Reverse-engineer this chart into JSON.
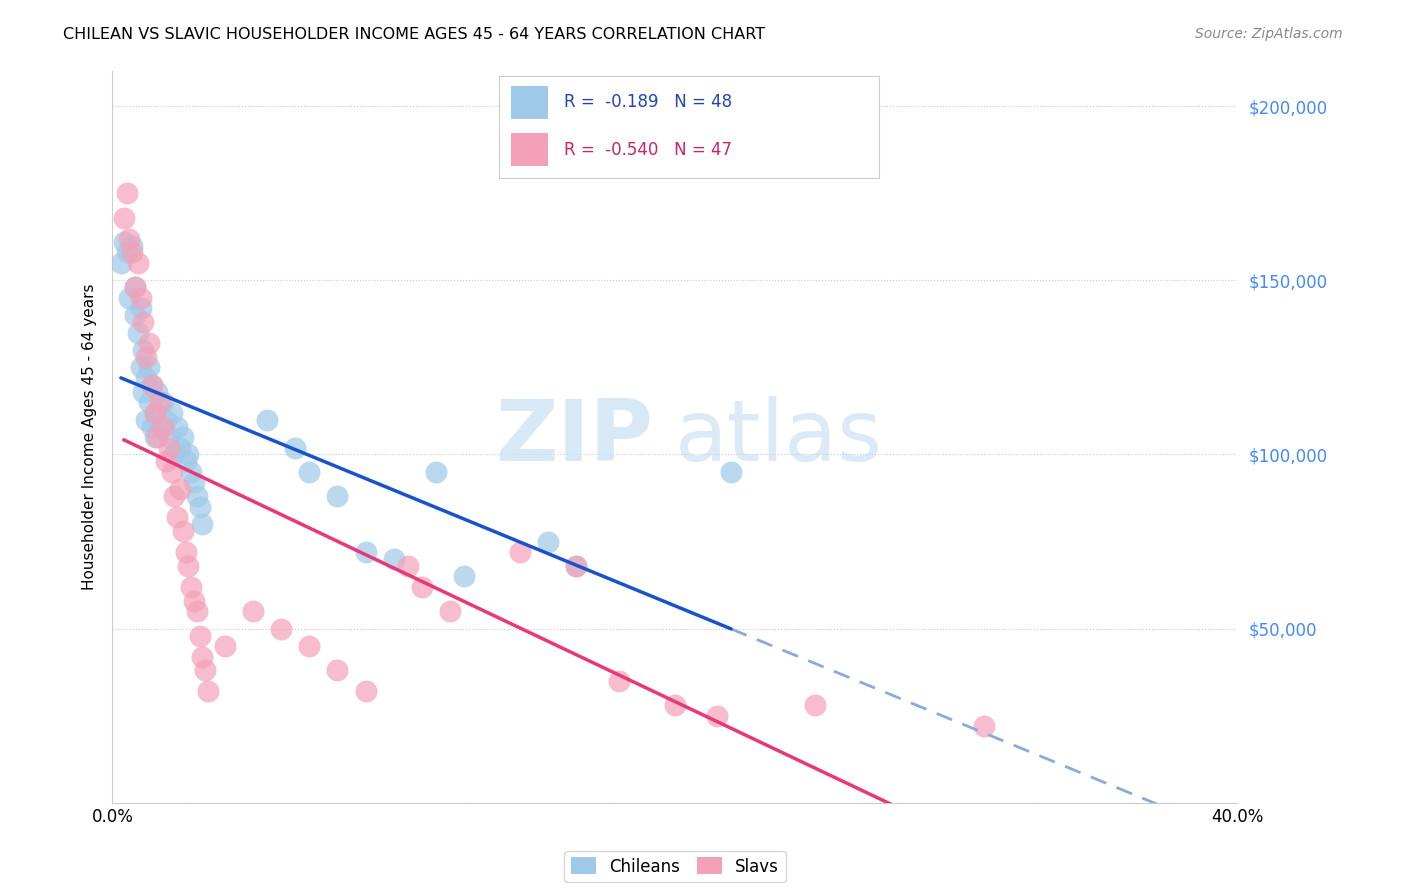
{
  "title": "CHILEAN VS SLAVIC HOUSEHOLDER INCOME AGES 45 - 64 YEARS CORRELATION CHART",
  "source": "Source: ZipAtlas.com",
  "ylabel": "Householder Income Ages 45 - 64 years",
  "xlim": [
    0,
    0.4
  ],
  "ylim": [
    0,
    210000
  ],
  "yticks": [
    0,
    50000,
    100000,
    150000,
    200000
  ],
  "ytick_labels_right": [
    "",
    "$50,000",
    "$100,000",
    "$150,000",
    "$200,000"
  ],
  "xticks": [
    0.0,
    0.1,
    0.2,
    0.3,
    0.4
  ],
  "xtick_labels": [
    "0.0%",
    "",
    "",
    "",
    "40.0%"
  ],
  "color_chilean": "#9EC9E8",
  "color_slav": "#F4A0B8",
  "color_line_chilean": "#1A52CC",
  "color_line_slav": "#E83878",
  "color_line_dashed": "#88AADD",
  "watermark_zip": "ZIP",
  "watermark_atlas": "atlas",
  "legend_r1_text": "R =  -0.189   N = 48",
  "legend_r2_text": "R =  -0.540   N = 47",
  "chilean_x": [
    0.003,
    0.004,
    0.005,
    0.006,
    0.007,
    0.008,
    0.008,
    0.009,
    0.01,
    0.01,
    0.011,
    0.011,
    0.012,
    0.012,
    0.013,
    0.013,
    0.014,
    0.014,
    0.015,
    0.015,
    0.016,
    0.017,
    0.018,
    0.019,
    0.02,
    0.021,
    0.022,
    0.023,
    0.024,
    0.025,
    0.026,
    0.027,
    0.028,
    0.029,
    0.03,
    0.031,
    0.032,
    0.055,
    0.065,
    0.07,
    0.08,
    0.09,
    0.1,
    0.115,
    0.125,
    0.155,
    0.165,
    0.22
  ],
  "chilean_y": [
    155000,
    161000,
    158000,
    145000,
    160000,
    140000,
    148000,
    135000,
    142000,
    125000,
    130000,
    118000,
    122000,
    110000,
    125000,
    115000,
    108000,
    120000,
    112000,
    105000,
    118000,
    108000,
    115000,
    110000,
    105000,
    112000,
    100000,
    108000,
    102000,
    105000,
    98000,
    100000,
    95000,
    92000,
    88000,
    85000,
    80000,
    110000,
    102000,
    95000,
    88000,
    72000,
    70000,
    95000,
    65000,
    75000,
    68000,
    95000
  ],
  "slav_x": [
    0.004,
    0.005,
    0.006,
    0.007,
    0.008,
    0.009,
    0.01,
    0.011,
    0.012,
    0.013,
    0.014,
    0.015,
    0.016,
    0.017,
    0.018,
    0.019,
    0.02,
    0.021,
    0.022,
    0.023,
    0.024,
    0.025,
    0.026,
    0.027,
    0.028,
    0.029,
    0.03,
    0.031,
    0.032,
    0.033,
    0.034,
    0.04,
    0.05,
    0.06,
    0.07,
    0.08,
    0.09,
    0.105,
    0.11,
    0.12,
    0.145,
    0.165,
    0.18,
    0.2,
    0.215,
    0.25,
    0.31
  ],
  "slav_y": [
    168000,
    175000,
    162000,
    158000,
    148000,
    155000,
    145000,
    138000,
    128000,
    132000,
    120000,
    112000,
    105000,
    115000,
    108000,
    98000,
    102000,
    95000,
    88000,
    82000,
    90000,
    78000,
    72000,
    68000,
    62000,
    58000,
    55000,
    48000,
    42000,
    38000,
    32000,
    45000,
    55000,
    50000,
    45000,
    38000,
    32000,
    68000,
    62000,
    55000,
    72000,
    68000,
    35000,
    28000,
    25000,
    28000,
    22000
  ],
  "chilean_line_x0": 0.003,
  "chilean_line_x1": 0.22,
  "slav_line_x0": 0.004,
  "slav_line_x1": 0.4,
  "dashed_line_x0": 0.22,
  "dashed_line_x1": 0.4
}
